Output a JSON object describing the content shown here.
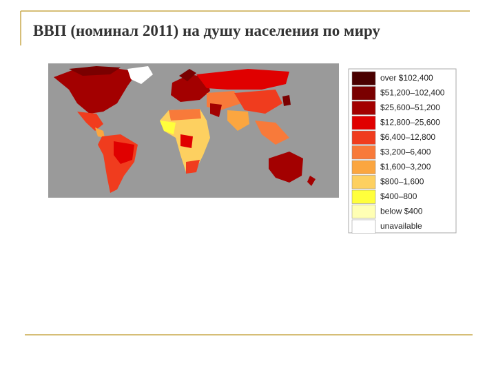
{
  "title": "ВВП (номинал 2011) на душу населения по миру",
  "legend": [
    {
      "label": "over $102,400",
      "color": "#4a0000"
    },
    {
      "label": "$51,200–102,400",
      "color": "#7a0000"
    },
    {
      "label": "$25,600–51,200",
      "color": "#a30000"
    },
    {
      "label": "$12,800–25,600",
      "color": "#e00000"
    },
    {
      "label": "$6,400–12,800",
      "color": "#f03c1e"
    },
    {
      "label": "$3,200–6,400",
      "color": "#f87a3a"
    },
    {
      "label": "$1,600–3,200",
      "color": "#fba640"
    },
    {
      "label": "$800–1,600",
      "color": "#fdd060"
    },
    {
      "label": "$400–800",
      "color": "#ffff3c"
    },
    {
      "label": "below $400",
      "color": "#ffffb4"
    },
    {
      "label": "unavailable",
      "color": "#ffffff"
    }
  ]
}
